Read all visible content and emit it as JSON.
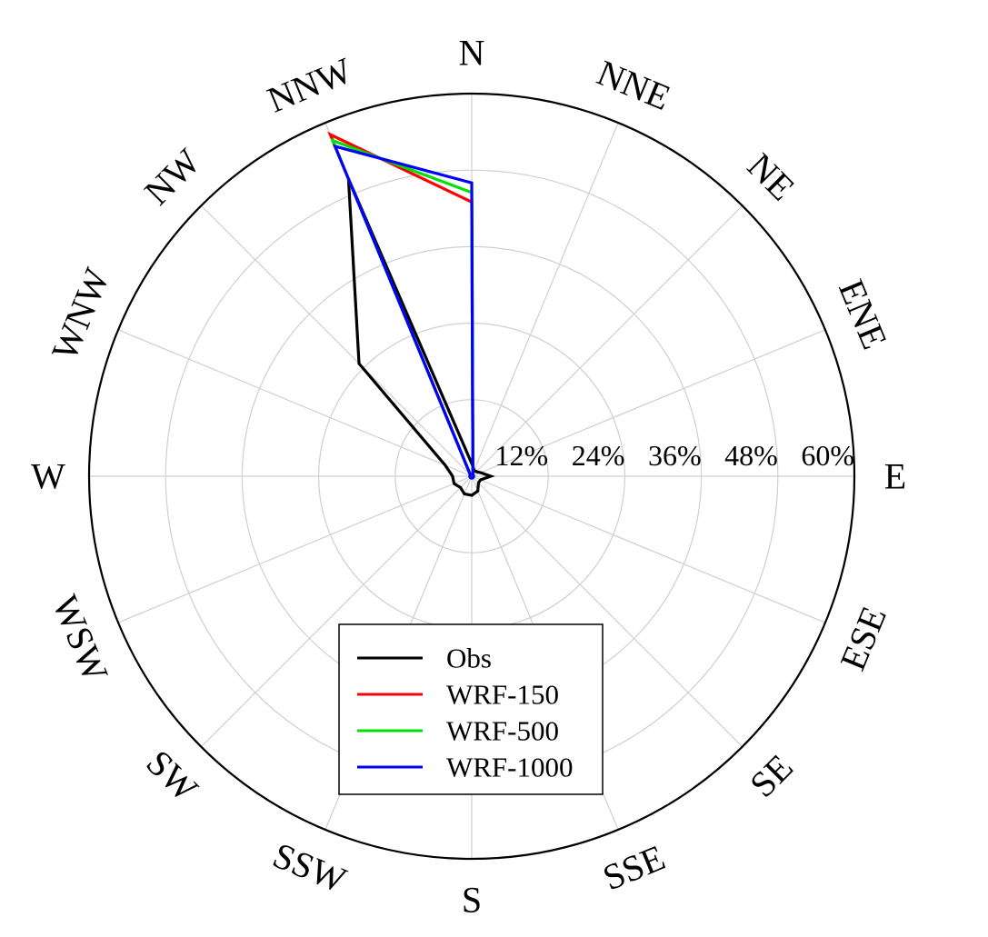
{
  "chart_data": {
    "type": "polar-line",
    "direction_labels": [
      "N",
      "NNE",
      "NE",
      "ENE",
      "E",
      "ESE",
      "SE",
      "SSE",
      "S",
      "SSW",
      "SW",
      "WSW",
      "W",
      "WNW",
      "NW",
      "NNW"
    ],
    "radial_tick_labels": [
      "12%",
      "24%",
      "36%",
      "48%",
      "60%"
    ],
    "radial_ticks": [
      12,
      24,
      36,
      48,
      60
    ],
    "rmax": 60,
    "grid": true,
    "legend_placement": "bottom-center",
    "series": [
      {
        "name": "Obs",
        "color": "#000000",
        "values": [
          2,
          1,
          1,
          1.5,
          3,
          1.5,
          1.5,
          2.5,
          3,
          3,
          2.5,
          3,
          3,
          4.5,
          25,
          50.5
        ]
      },
      {
        "name": "WRF-150",
        "color": "#ff0000",
        "values": [
          43,
          0.5,
          0.3,
          0.3,
          0.3,
          0.3,
          0.3,
          0.3,
          0.3,
          0.3,
          0.3,
          0.3,
          0.3,
          0.3,
          0.3,
          58
        ]
      },
      {
        "name": "WRF-500",
        "color": "#00e000",
        "values": [
          44.5,
          0.5,
          0.3,
          0.3,
          0.3,
          0.3,
          0.3,
          0.3,
          0.3,
          0.3,
          0.3,
          0.3,
          0.3,
          0.3,
          0.3,
          57
        ]
      },
      {
        "name": "WRF-1000",
        "color": "#0000ff",
        "values": [
          46,
          0.5,
          0.3,
          0.3,
          0.3,
          0.3,
          0.3,
          0.3,
          0.3,
          0.3,
          0.3,
          0.3,
          0.3,
          0.3,
          0.3,
          56
        ]
      }
    ]
  }
}
